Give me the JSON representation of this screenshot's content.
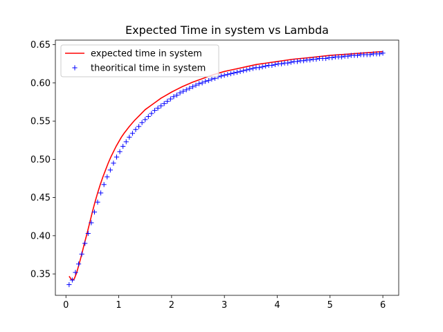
{
  "chart_data": {
    "type": "line",
    "title": "Expected Time in system vs Lambda",
    "xlabel": "",
    "ylabel": "",
    "xlim": [
      -0.2,
      6.3
    ],
    "ylim": [
      0.322,
      0.656
    ],
    "xticks": [
      0,
      1,
      2,
      3,
      4,
      5,
      6
    ],
    "yticks": [
      0.35,
      0.4,
      0.45,
      0.5,
      0.55,
      0.6,
      0.65
    ],
    "ytick_labels": [
      "0.35",
      "0.40",
      "0.45",
      "0.50",
      "0.55",
      "0.60",
      "0.65"
    ],
    "grid": false,
    "legend_position": "upper left",
    "series": [
      {
        "name": "expected time in system",
        "style": "line",
        "color": "#ff0000",
        "x": [
          0.06,
          0.1,
          0.13,
          0.16,
          0.2,
          0.25,
          0.3,
          0.35,
          0.4,
          0.45,
          0.5,
          0.55,
          0.6,
          0.65,
          0.7,
          0.75,
          0.8,
          0.85,
          0.9,
          0.95,
          1.0,
          1.05,
          1.1,
          1.2,
          1.3,
          1.4,
          1.5,
          1.6,
          1.7,
          1.8,
          1.9,
          2.0,
          2.2,
          2.4,
          2.6,
          2.8,
          3.0,
          3.2,
          3.4,
          3.6,
          3.8,
          4.0,
          4.3,
          4.6,
          5.0,
          5.4,
          5.8,
          6.0
        ],
        "y": [
          0.347,
          0.343,
          0.342,
          0.344,
          0.351,
          0.363,
          0.376,
          0.39,
          0.403,
          0.417,
          0.431,
          0.444,
          0.456,
          0.467,
          0.477,
          0.486,
          0.495,
          0.503,
          0.51,
          0.517,
          0.523,
          0.529,
          0.534,
          0.543,
          0.551,
          0.558,
          0.565,
          0.57,
          0.575,
          0.58,
          0.584,
          0.588,
          0.595,
          0.601,
          0.606,
          0.611,
          0.615,
          0.618,
          0.621,
          0.624,
          0.626,
          0.628,
          0.631,
          0.633,
          0.636,
          0.638,
          0.64,
          0.641
        ]
      },
      {
        "name": "theoritical time in system",
        "style": "marker",
        "marker": "+",
        "color": "#0000ff",
        "x": [
          0.06,
          0.12,
          0.18,
          0.24,
          0.3,
          0.36,
          0.42,
          0.48,
          0.54,
          0.6,
          0.66,
          0.72,
          0.78,
          0.84,
          0.9,
          0.96,
          1.02,
          1.08,
          1.14,
          1.2,
          1.26,
          1.32,
          1.38,
          1.44,
          1.5,
          1.56,
          1.62,
          1.68,
          1.74,
          1.8,
          1.86,
          1.92,
          1.98,
          2.04,
          2.1,
          2.16,
          2.22,
          2.28,
          2.34,
          2.4,
          2.46,
          2.52,
          2.58,
          2.64,
          2.7,
          2.76,
          2.82,
          2.88,
          2.94,
          3.0,
          3.06,
          3.12,
          3.18,
          3.24,
          3.3,
          3.36,
          3.42,
          3.48,
          3.54,
          3.6,
          3.66,
          3.72,
          3.78,
          3.84,
          3.9,
          3.96,
          4.02,
          4.08,
          4.14,
          4.2,
          4.26,
          4.32,
          4.38,
          4.44,
          4.5,
          4.56,
          4.62,
          4.68,
          4.74,
          4.8,
          4.86,
          4.92,
          4.98,
          5.04,
          5.1,
          5.16,
          5.22,
          5.28,
          5.34,
          5.4,
          5.46,
          5.52,
          5.58,
          5.64,
          5.7,
          5.76,
          5.82,
          5.88,
          5.94,
          6.0
        ],
        "y": [
          0.336,
          0.342,
          0.352,
          0.363,
          0.376,
          0.39,
          0.403,
          0.417,
          0.431,
          0.444,
          0.456,
          0.467,
          0.477,
          0.486,
          0.495,
          0.503,
          0.51,
          0.517,
          0.523,
          0.529,
          0.534,
          0.539,
          0.543,
          0.548,
          0.552,
          0.556,
          0.56,
          0.564,
          0.567,
          0.57,
          0.573,
          0.576,
          0.579,
          0.582,
          0.584,
          0.587,
          0.589,
          0.591,
          0.593,
          0.595,
          0.597,
          0.599,
          0.6,
          0.602,
          0.603,
          0.605,
          0.606,
          0.608,
          0.609,
          0.61,
          0.611,
          0.612,
          0.613,
          0.614,
          0.615,
          0.616,
          0.617,
          0.618,
          0.619,
          0.62,
          0.62,
          0.621,
          0.622,
          0.623,
          0.623,
          0.624,
          0.625,
          0.625,
          0.626,
          0.626,
          0.627,
          0.628,
          0.628,
          0.629,
          0.629,
          0.63,
          0.63,
          0.631,
          0.631,
          0.632,
          0.632,
          0.632,
          0.633,
          0.633,
          0.634,
          0.634,
          0.634,
          0.635,
          0.635,
          0.636,
          0.636,
          0.636,
          0.637,
          0.637,
          0.637,
          0.637,
          0.638,
          0.638,
          0.638,
          0.639
        ]
      }
    ]
  }
}
